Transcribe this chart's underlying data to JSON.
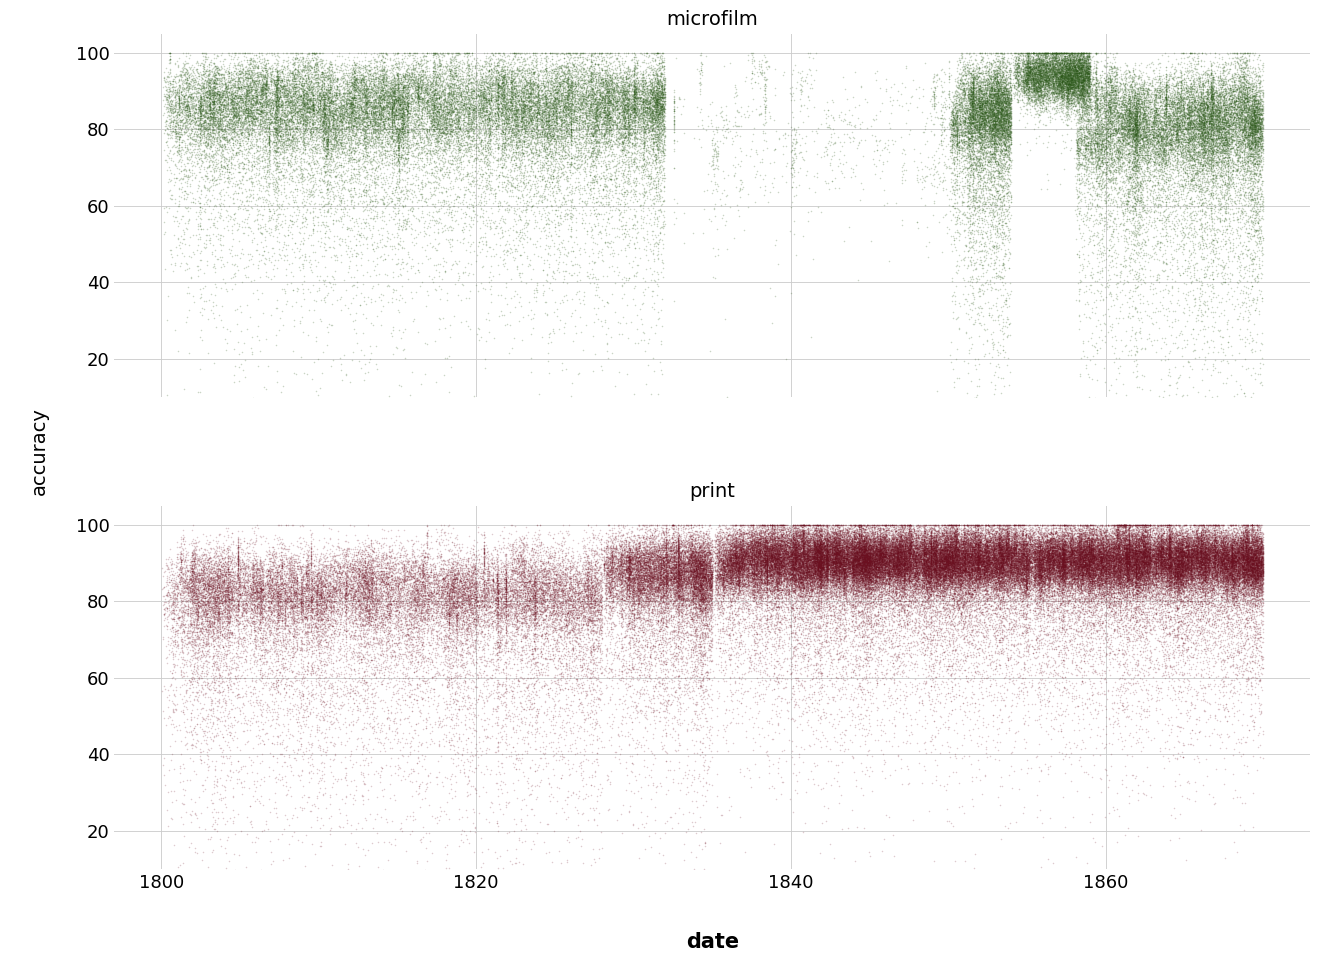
{
  "title_microfilm": "microfilm",
  "title_print": "print",
  "xlabel": "date",
  "ylabel": "accuracy",
  "xlim": [
    1797,
    1873
  ],
  "ylim": [
    10,
    105
  ],
  "yticks": [
    20,
    40,
    60,
    80,
    100
  ],
  "xticks": [
    1800,
    1820,
    1840,
    1860
  ],
  "microfilm_color": "#2d5a1b",
  "print_color": "#6b1020",
  "point_size": 1.2,
  "alpha_microfilm": 0.25,
  "alpha_print": 0.22,
  "background_color": "#ffffff",
  "grid_color": "#cccccc",
  "seed": 42
}
